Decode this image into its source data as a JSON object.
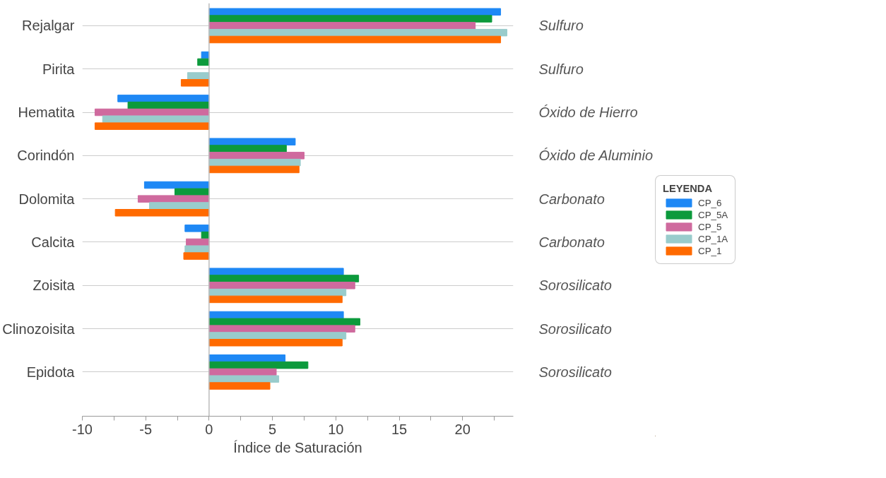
{
  "chart_data": {
    "type": "bar",
    "orientation": "horizontal",
    "xlabel": "Índice de Saturación",
    "legend_title": "LEYENDA",
    "legend": "right",
    "categories": [
      "Rejalgar",
      "Pirita",
      "Hematita",
      "Corindón",
      "Dolomita",
      "Calcita",
      "Zoisita",
      "Clinozoisita",
      "Epidota"
    ],
    "series": [
      {
        "name": "CP_6",
        "color": "#1e88f5",
        "values": [
          23.0,
          -0.6,
          -7.2,
          6.8,
          -5.1,
          -1.9,
          10.6,
          10.6,
          6.0
        ]
      },
      {
        "name": "CP_5A",
        "color": "#0c9a3c",
        "values": [
          22.3,
          -0.9,
          -6.4,
          6.1,
          -2.7,
          -0.6,
          11.8,
          11.9,
          7.8
        ]
      },
      {
        "name": "CP_5",
        "color": "#cf6a9e",
        "values": [
          21.0,
          null,
          -9.0,
          7.5,
          -5.6,
          -1.8,
          11.5,
          11.5,
          5.3
        ]
      },
      {
        "name": "CP_1A",
        "color": "#99cccc",
        "values": [
          23.5,
          -1.7,
          -8.4,
          7.2,
          -4.7,
          -1.9,
          10.8,
          10.8,
          5.5
        ]
      },
      {
        "name": "CP_1",
        "color": "#ff6a00",
        "values": [
          23.0,
          -2.2,
          -9.0,
          7.1,
          -7.4,
          -2.0,
          10.5,
          10.5,
          4.8
        ]
      }
    ],
    "xlim": [
      -10,
      24
    ],
    "xticks": [
      -10,
      {
        "value": -7.5,
        "label": null
      },
      -5,
      {
        "value": -2.5,
        "label": null
      },
      0,
      {
        "value": 2.5,
        "label": null
      },
      5,
      {
        "value": 7.5,
        "label": null
      },
      10,
      {
        "value": 12.5,
        "label": null
      },
      15,
      {
        "value": 17.5,
        "label": null
      },
      20,
      {
        "value": 22.5,
        "label": null
      }
    ],
    "grid": "y",
    "annotations": [
      "Sulfuro",
      "Sulfuro",
      "Óxido de Hierro",
      "Óxido de Aluminio",
      "Carbonato",
      "Carbonato",
      "Sorosilicato",
      "Sorosilicato",
      "Sorosilicato"
    ]
  }
}
